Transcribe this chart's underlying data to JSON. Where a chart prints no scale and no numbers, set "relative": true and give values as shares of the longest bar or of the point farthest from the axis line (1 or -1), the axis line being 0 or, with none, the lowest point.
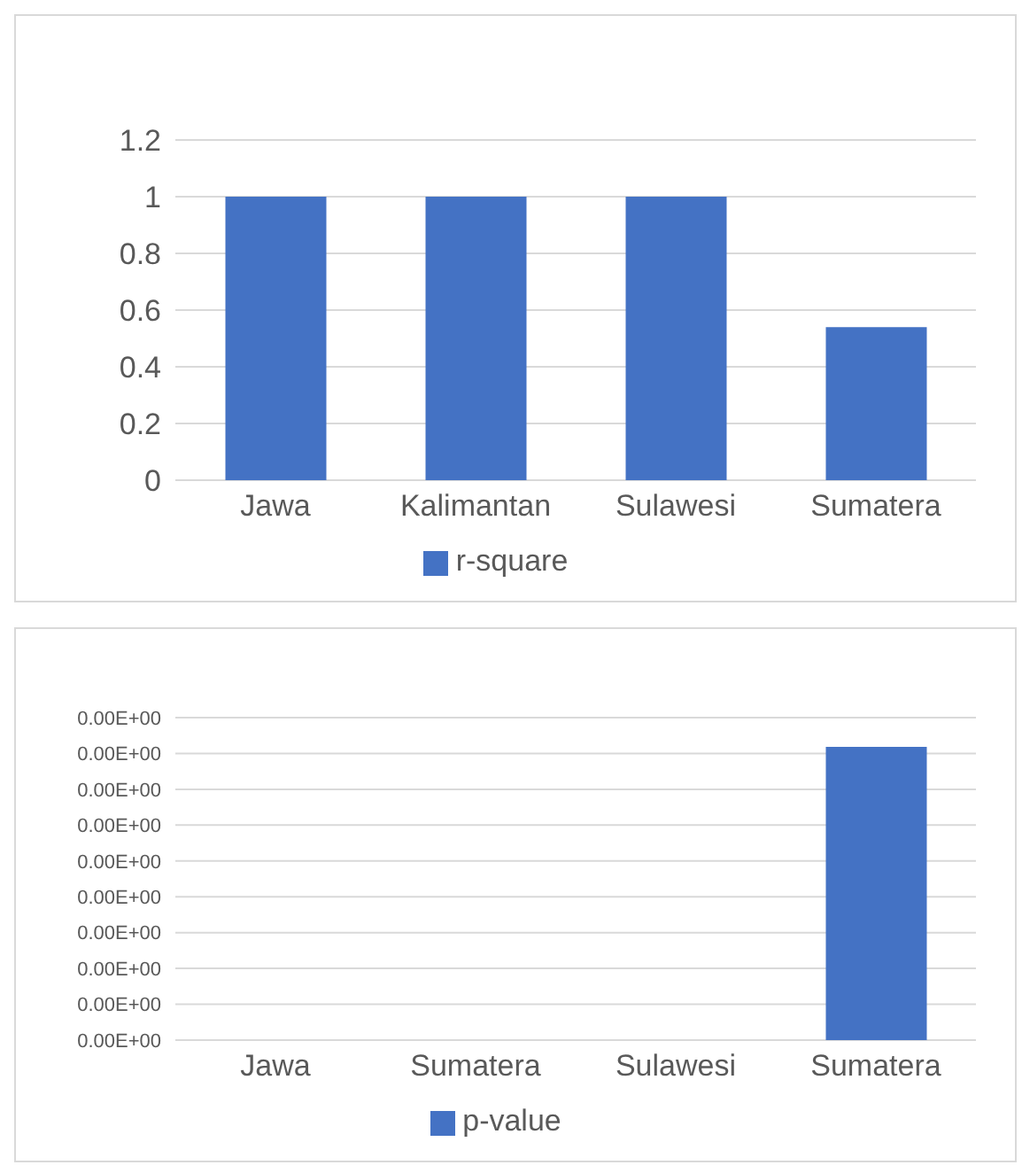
{
  "chart_data": [
    {
      "type": "bar",
      "categories": [
        "Jawa",
        "Kalimantan",
        "Sulawesi",
        "Sumatera"
      ],
      "series": [
        {
          "name": "r-square",
          "color": "#4472c4",
          "values": [
            1,
            1,
            1,
            0.54
          ]
        }
      ],
      "ylim": [
        0,
        1.2
      ],
      "yticks": [
        0,
        0.2,
        0.4,
        0.6,
        0.8,
        1,
        1.2
      ],
      "grid": "y",
      "legend": "bottom"
    },
    {
      "type": "bar",
      "categories": [
        "Jawa",
        "Sumatera",
        "Sulawesi",
        "Sumatera"
      ],
      "series": [
        {
          "name": "p-value",
          "color": "#4472c4",
          "values": [
            0,
            0,
            0,
            1
          ]
        }
      ],
      "relative": true,
      "annotations": [
        "0.00E+00",
        "0.00E+00",
        "0.00E+00",
        "0.00E+00",
        "0.00E+00",
        "0.00E+00",
        "0.00E+00",
        "0.00E+00",
        "0.00E+00",
        "0.00E+00"
      ],
      "grid": "y",
      "legend": "bottom"
    }
  ]
}
